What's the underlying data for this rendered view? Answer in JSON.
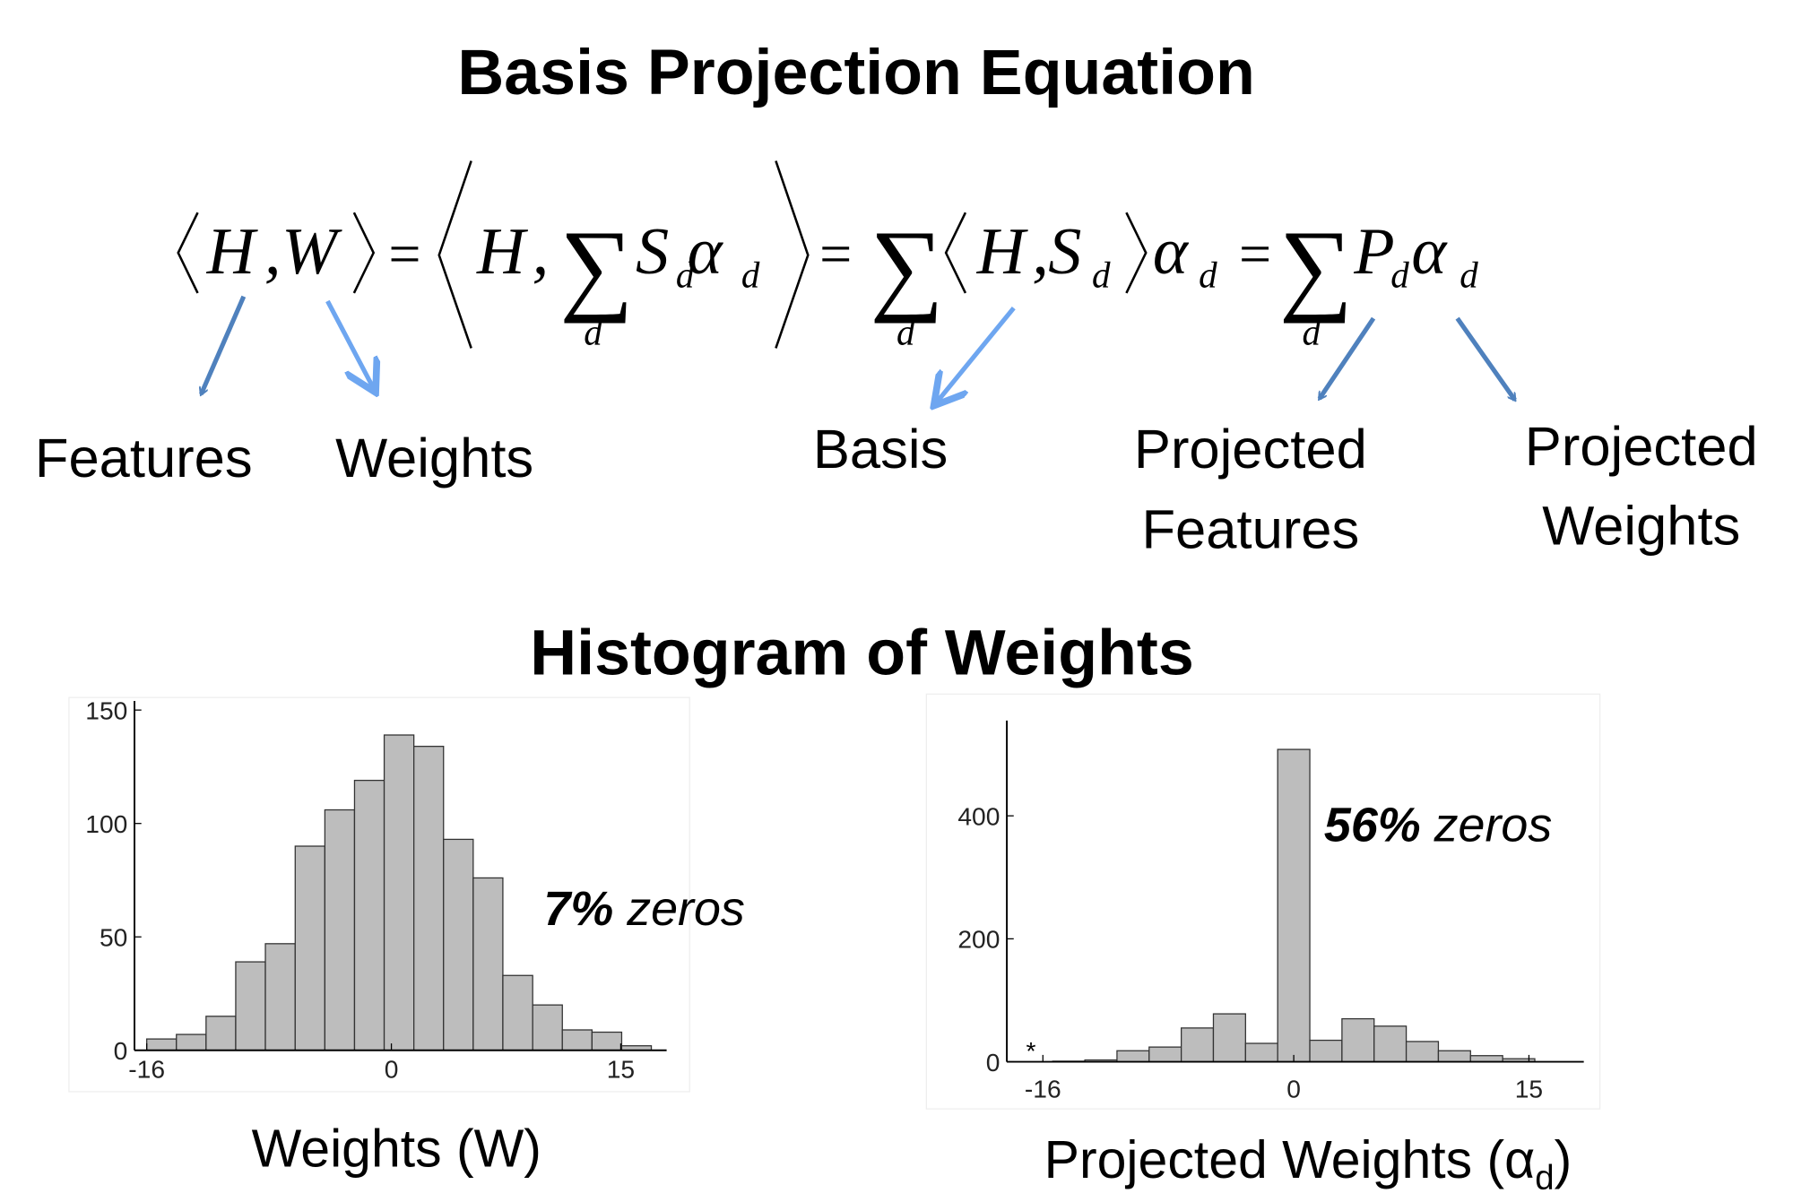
{
  "title": "Basis Projection Equation",
  "equation": [
    "H",
    ",",
    "W",
    "=",
    "H",
    ",",
    "∑",
    "d",
    "S",
    "d",
    "α",
    "d",
    "=",
    "∑",
    "d",
    "H",
    ",",
    "S",
    "d",
    "α",
    "d",
    "=",
    "∑",
    "d",
    "P",
    "d",
    "α",
    "d"
  ],
  "labels": [
    "Features",
    "Weights",
    "Basis",
    [
      "Projected",
      "Features"
    ],
    [
      "Projected",
      "Weights"
    ]
  ],
  "subtitle": "Histogram of Weights",
  "chart_data": [
    {
      "type": "histogram",
      "xlabel": "Weights (W)",
      "annotation": [
        "7%",
        "zeros"
      ],
      "bins": [
        -16,
        -14.06,
        -12.12,
        -10.18,
        -8.24,
        -6.29,
        -4.35,
        -2.41,
        -0.47,
        1.47,
        3.41,
        5.35,
        7.29,
        9.24,
        11.18,
        13.12,
        15.06,
        17
      ],
      "values": [
        5,
        7,
        15,
        39,
        47,
        90,
        106,
        119,
        139,
        134,
        93,
        76,
        33,
        20,
        9,
        8,
        2
      ],
      "color": "#bdbdbd",
      "xlim": [
        -16.8,
        18
      ],
      "ylim": [
        0,
        154
      ],
      "xticks": [
        -16,
        0,
        15
      ],
      "yticks": [
        0,
        50,
        100,
        150
      ]
    },
    {
      "type": "histogram",
      "xlabel": [
        "Projected Weights (α",
        "d",
        ")"
      ],
      "annotation": [
        "56%",
        "zeros"
      ],
      "note": "*",
      "bins": [
        -15.375,
        -13.325,
        -11.275,
        -9.225,
        -7.175,
        -5.125,
        -3.075,
        -1.025,
        1.025,
        3.075,
        5.125,
        7.175,
        9.225,
        11.275,
        13.325,
        15.375
      ],
      "values": [
        1,
        3,
        18,
        24,
        55,
        78,
        30,
        508,
        35,
        70,
        58,
        33,
        18,
        10,
        5
      ],
      "color": "#bdbdbd",
      "xlim": [
        -18.3,
        18.5
      ],
      "ylim": [
        0,
        555
      ],
      "xticks": [
        -16,
        0,
        15
      ],
      "yticks": [
        0,
        200,
        400
      ]
    }
  ]
}
